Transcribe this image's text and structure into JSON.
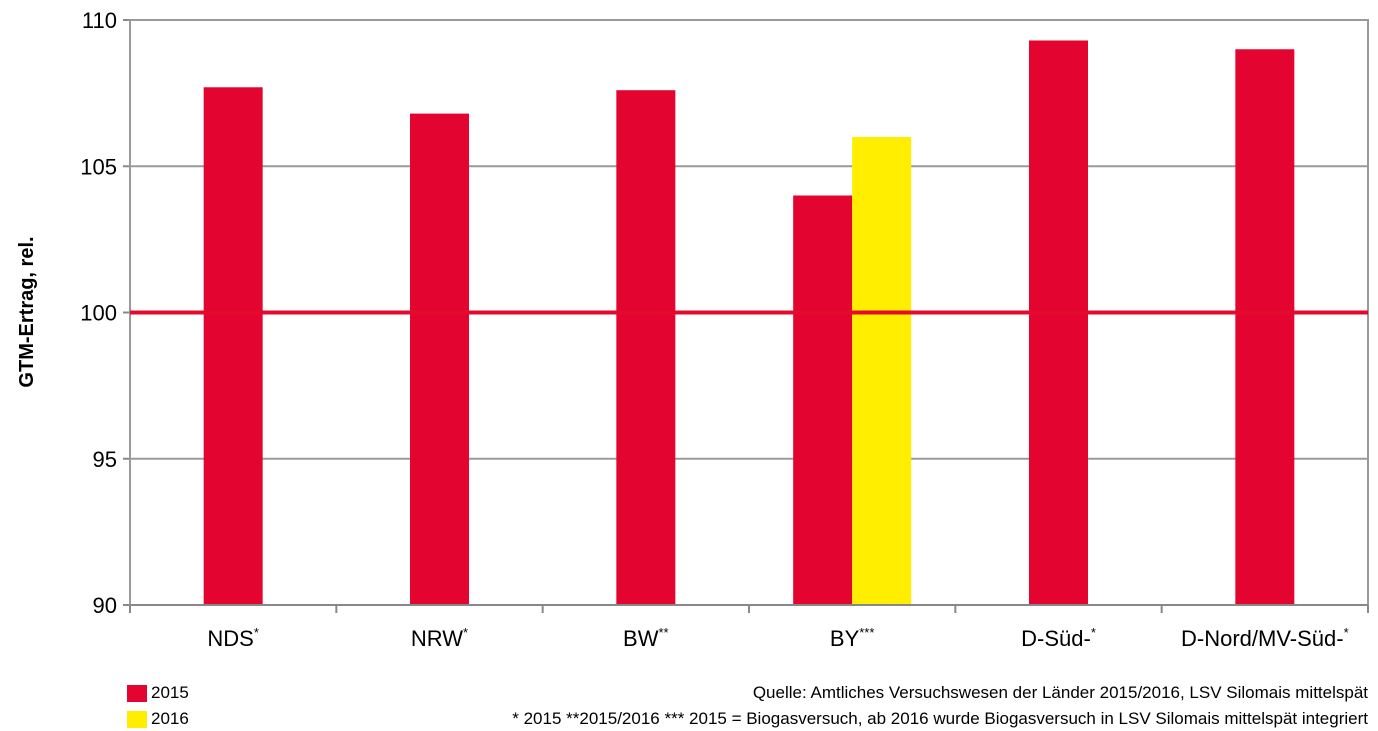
{
  "chart_data": {
    "type": "bar",
    "ylabel": "GTM-Ertrag, rel.",
    "ylim": [
      90,
      110
    ],
    "yticks": [
      "90",
      "95",
      "100",
      "105",
      "110"
    ],
    "reference_line": {
      "value": 100,
      "color": "#E30A2D"
    },
    "grid": true,
    "categories": [
      {
        "label": "NDS",
        "sup": "*"
      },
      {
        "label": "NRW",
        "sup": "*"
      },
      {
        "label": "BW",
        "sup": "**"
      },
      {
        "label": "BY",
        "sup": "***"
      },
      {
        "label": "D-Süd-",
        "sup": "*"
      },
      {
        "label": "D-Nord/MV-Süd-",
        "sup": "*"
      }
    ],
    "series": [
      {
        "name": "2015",
        "color": "#E30530",
        "values": [
          107.7,
          106.8,
          107.6,
          104.0,
          109.3,
          109.0
        ]
      },
      {
        "name": "2016",
        "color": "#FFEE00",
        "values": [
          null,
          null,
          null,
          106.0,
          null,
          null
        ]
      }
    ],
    "legend_position": "bottom-left"
  },
  "footnotes": {
    "source": "Quelle: Amtliches Versuchswesen der Länder 2015/2016, LSV Silomais mittelspät",
    "legend_note": "* 2015  **2015/2016   *** 2015 = Biogasversuch, ab 2016 wurde Biogasversuch in LSV Silomais mittelspät integriert"
  }
}
